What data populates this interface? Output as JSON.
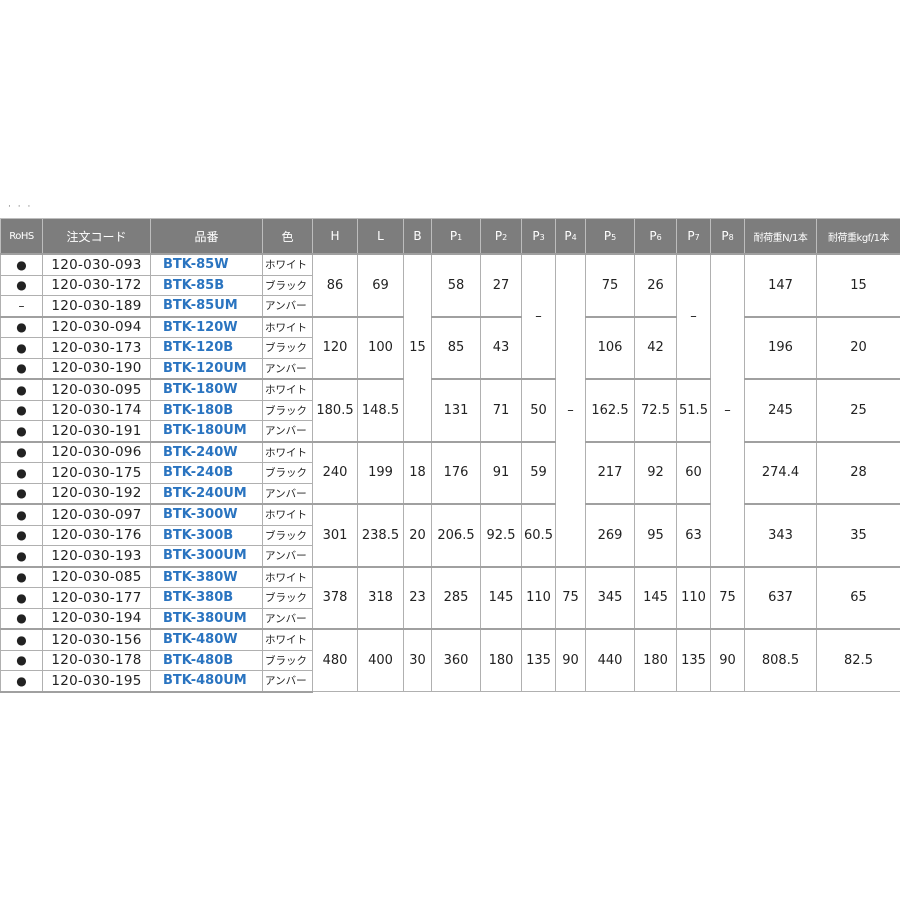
{
  "page_marker": "· · ·",
  "headers": [
    "RoHS",
    "注文コード",
    "品番",
    "色",
    "H",
    "L",
    "B",
    "P1",
    "P2",
    "P3",
    "P4",
    "P5",
    "P6",
    "P7",
    "P8",
    "耐荷重N/1本",
    "耐荷重kgf/1本"
  ],
  "groups": [
    {
      "H": "86",
      "L": "69",
      "B": "15",
      "P1": "58",
      "P2": "27",
      "P3": "–",
      "P4": "–",
      "P5": "75",
      "P6": "26",
      "P7": "–",
      "P8": "–",
      "N": "147",
      "kgf": "15",
      "rows": [
        {
          "rohs": "●",
          "code": "120-030-093",
          "part": "BTK-85W",
          "color": "ホワイト"
        },
        {
          "rohs": "●",
          "code": "120-030-172",
          "part": "BTK-85B",
          "color": "ブラック"
        },
        {
          "rohs": "–",
          "code": "120-030-189",
          "part": "BTK-85UM",
          "color": "アンバー"
        }
      ]
    },
    {
      "H": "120",
      "L": "100",
      "B": null,
      "P1": "85",
      "P2": "43",
      "P3": null,
      "P4": null,
      "P5": "106",
      "P6": "42",
      "P7": null,
      "P8": null,
      "N": "196",
      "kgf": "20",
      "rows": [
        {
          "rohs": "●",
          "code": "120-030-094",
          "part": "BTK-120W",
          "color": "ホワイト"
        },
        {
          "rohs": "●",
          "code": "120-030-173",
          "part": "BTK-120B",
          "color": "ブラック"
        },
        {
          "rohs": "●",
          "code": "120-030-190",
          "part": "BTK-120UM",
          "color": "アンバー"
        }
      ]
    },
    {
      "H": "180.5",
      "L": "148.5",
      "B": null,
      "P1": "131",
      "P2": "71",
      "P3": "50",
      "P4": null,
      "P5": "162.5",
      "P6": "72.5",
      "P7": "51.5",
      "P8": null,
      "N": "245",
      "kgf": "25",
      "rows": [
        {
          "rohs": "●",
          "code": "120-030-095",
          "part": "BTK-180W",
          "color": "ホワイト"
        },
        {
          "rohs": "●",
          "code": "120-030-174",
          "part": "BTK-180B",
          "color": "ブラック"
        },
        {
          "rohs": "●",
          "code": "120-030-191",
          "part": "BTK-180UM",
          "color": "アンバー"
        }
      ]
    },
    {
      "H": "240",
      "L": "199",
      "B": "18",
      "P1": "176",
      "P2": "91",
      "P3": "59",
      "P4": null,
      "P5": "217",
      "P6": "92",
      "P7": "60",
      "P8": null,
      "N": "274.4",
      "kgf": "28",
      "rows": [
        {
          "rohs": "●",
          "code": "120-030-096",
          "part": "BTK-240W",
          "color": "ホワイト"
        },
        {
          "rohs": "●",
          "code": "120-030-175",
          "part": "BTK-240B",
          "color": "ブラック"
        },
        {
          "rohs": "●",
          "code": "120-030-192",
          "part": "BTK-240UM",
          "color": "アンバー"
        }
      ]
    },
    {
      "H": "301",
      "L": "238.5",
      "B": "20",
      "P1": "206.5",
      "P2": "92.5",
      "P3": "60.5",
      "P4": null,
      "P5": "269",
      "P6": "95",
      "P7": "63",
      "P8": null,
      "N": "343",
      "kgf": "35",
      "rows": [
        {
          "rohs": "●",
          "code": "120-030-097",
          "part": "BTK-300W",
          "color": "ホワイト"
        },
        {
          "rohs": "●",
          "code": "120-030-176",
          "part": "BTK-300B",
          "color": "ブラック"
        },
        {
          "rohs": "●",
          "code": "120-030-193",
          "part": "BTK-300UM",
          "color": "アンバー"
        }
      ]
    },
    {
      "H": "378",
      "L": "318",
      "B": "23",
      "P1": "285",
      "P2": "145",
      "P3": "110",
      "P4": "75",
      "P5": "345",
      "P6": "145",
      "P7": "110",
      "P8": "75",
      "N": "637",
      "kgf": "65",
      "rows": [
        {
          "rohs": "●",
          "code": "120-030-085",
          "part": "BTK-380W",
          "color": "ホワイト"
        },
        {
          "rohs": "●",
          "code": "120-030-177",
          "part": "BTK-380B",
          "color": "ブラック"
        },
        {
          "rohs": "●",
          "code": "120-030-194",
          "part": "BTK-380UM",
          "color": "アンバー"
        }
      ]
    },
    {
      "H": "480",
      "L": "400",
      "B": "30",
      "P1": "360",
      "P2": "180",
      "P3": "135",
      "P4": "90",
      "P5": "440",
      "P6": "180",
      "P7": "135",
      "P8": "90",
      "N": "808.5",
      "kgf": "82.5",
      "rows": [
        {
          "rohs": "●",
          "code": "120-030-156",
          "part": "BTK-480W",
          "color": "ホワイト"
        },
        {
          "rohs": "●",
          "code": "120-030-178",
          "part": "BTK-480B",
          "color": "ブラック"
        },
        {
          "rohs": "●",
          "code": "120-030-195",
          "part": "BTK-480UM",
          "color": "アンバー"
        }
      ]
    }
  ],
  "colors": {
    "header_bg": "#7d7d7d",
    "part_link": "#2a74c0"
  }
}
